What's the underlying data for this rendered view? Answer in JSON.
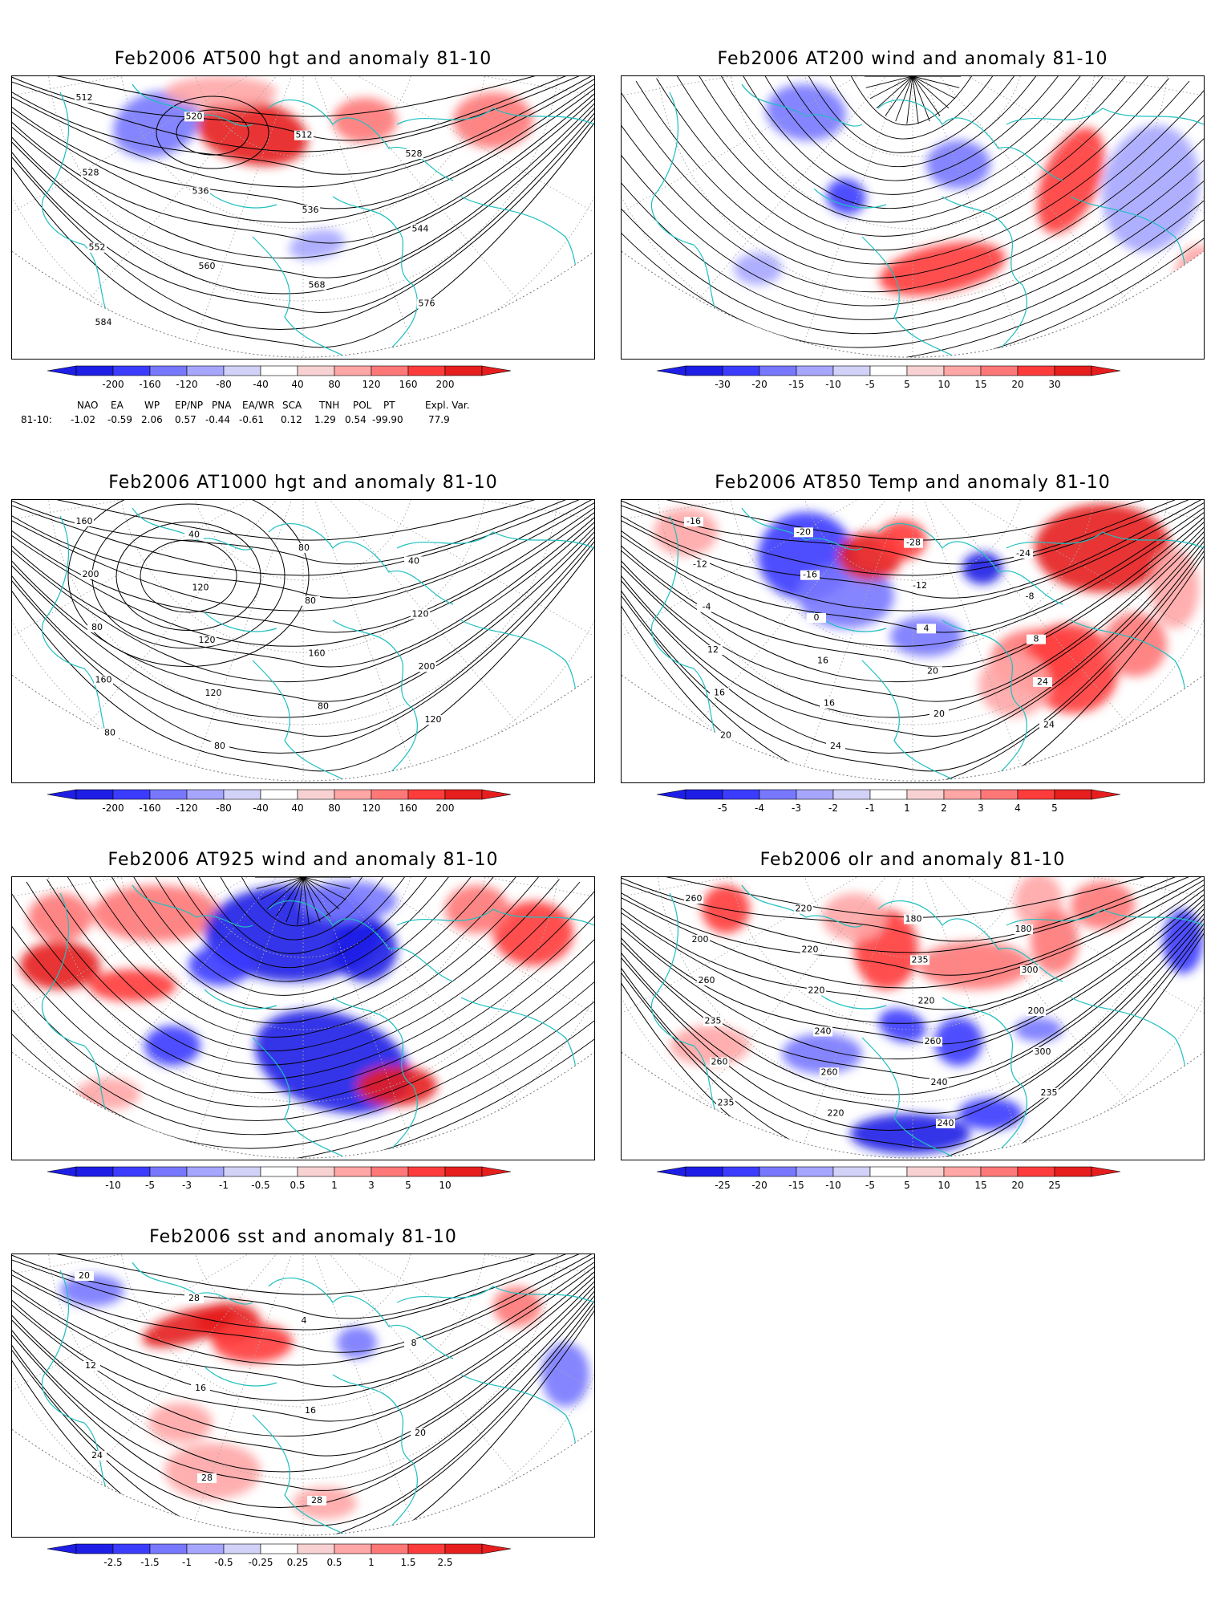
{
  "panels": [
    {
      "title": "Feb2006 AT500 hgt and anomaly 81-10",
      "kind": "hgt",
      "contour_labels": [
        "512",
        "520",
        "512",
        "528",
        "528",
        "536",
        "536",
        "544",
        "552",
        "560",
        "568",
        "576",
        "584"
      ],
      "colorbar": [
        "-200",
        "-160",
        "-120",
        "-80",
        "-40",
        "40",
        "80",
        "120",
        "160",
        "200"
      ]
    },
    {
      "title": "Feb2006 AT200 wind and anomaly 81-10",
      "kind": "wind",
      "contour_labels": [],
      "colorbar": [
        "-30",
        "-20",
        "-15",
        "-10",
        "-5",
        "5",
        "10",
        "15",
        "20",
        "30"
      ]
    },
    {
      "title": "Feb2006 AT1000 hgt and anomaly 81-10",
      "kind": "hgt",
      "contour_labels": [
        "160",
        "40",
        "80",
        "40",
        "200",
        "120",
        "80",
        "120",
        "80",
        "120",
        "160",
        "200",
        "160",
        "120",
        "80",
        "120",
        "80",
        "80"
      ],
      "colorbar": [
        "-200",
        "-160",
        "-120",
        "-80",
        "-40",
        "40",
        "80",
        "120",
        "160",
        "200"
      ]
    },
    {
      "title": "Feb2006 AT850 Temp and anomaly 81-10",
      "kind": "temp",
      "contour_labels": [
        "-16",
        "-20",
        "-28",
        "-24",
        "-12",
        "-16",
        "-12",
        "-8",
        "-4",
        "0",
        "4",
        "8",
        "12",
        "16",
        "20",
        "24",
        "16",
        "16",
        "20",
        "24",
        "20",
        "24"
      ],
      "colorbar": [
        "-5",
        "-4",
        "-3",
        "-2",
        "-1",
        "1",
        "2",
        "3",
        "4",
        "5"
      ]
    },
    {
      "title": "Feb2006 AT925 wind and anomaly 81-10",
      "kind": "wind",
      "contour_labels": [],
      "colorbar": [
        "-10",
        "-5",
        "-3",
        "-1",
        "-0.5",
        "0.5",
        "1",
        "3",
        "5",
        "10"
      ]
    },
    {
      "title": "Feb2006 olr and anomaly 81-10",
      "kind": "olr",
      "contour_labels": [
        "260",
        "220",
        "180",
        "180",
        "200",
        "220",
        "235",
        "300",
        "260",
        "220",
        "220",
        "200",
        "235",
        "240",
        "260",
        "300",
        "260",
        "260",
        "240",
        "235",
        "235",
        "220",
        "240"
      ],
      "colorbar": [
        "-25",
        "-20",
        "-15",
        "-10",
        "-5",
        "5",
        "10",
        "15",
        "20",
        "25"
      ]
    },
    {
      "title": "Feb2006 sst and anomaly 81-10",
      "kind": "sst",
      "contour_labels": [
        "20",
        "28",
        "4",
        "8",
        "12",
        "16",
        "16",
        "20",
        "24",
        "28",
        "28"
      ],
      "colorbar": [
        "-2.5",
        "-1.5",
        "-1",
        "-0.5",
        "-0.25",
        "0.25",
        "0.5",
        "1",
        "1.5",
        "2.5"
      ]
    }
  ],
  "indices": {
    "headers": [
      "NAO",
      "EA",
      "WP",
      "EP/NP",
      "PNA",
      "EA/WR",
      "SCA",
      "TNH",
      "POL",
      "PT",
      "Expl. Var."
    ],
    "row_label": "81-10:",
    "values": [
      "-1.02",
      "-0.59",
      "2.06",
      "0.57",
      "-0.44",
      "-0.61",
      "0.12",
      "1.29",
      "0.54",
      "-99.90",
      "77.9"
    ]
  },
  "colors": {
    "coast": "#1fbfbf",
    "contour": "#000000",
    "grid": "#aaaaaa",
    "negative": [
      "#1e1ee6",
      "#3c3cff",
      "#7878ff",
      "#a6a6ff",
      "#d2d2f8"
    ],
    "positive": [
      "#f8d2d2",
      "#ffa6a6",
      "#ff7878",
      "#ff3c3c",
      "#e61e1e"
    ]
  }
}
